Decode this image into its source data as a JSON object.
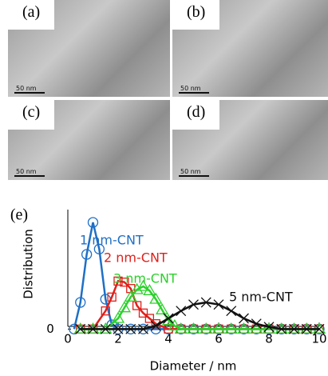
{
  "panels": [
    {
      "label": "(a)",
      "scale": "50 nm"
    },
    {
      "label": "(b)",
      "scale": "50 nm"
    },
    {
      "label": "(c)",
      "scale": "50 nm"
    },
    {
      "label": "(d)",
      "scale": "50 nm"
    }
  ],
  "chart_data": {
    "type": "line",
    "panel_label": "(e)",
    "x_label": "Diameter / nm",
    "y_label": "Distribution",
    "xlim": [
      0,
      10
    ],
    "xticks": [
      0,
      2,
      4,
      6,
      8,
      10
    ],
    "ylim": [
      -0.05,
      1.12
    ],
    "yticks": [
      0
    ],
    "series": [
      {
        "name": "1 nm-CNT",
        "color": "#1f6fc6",
        "marker": "circle",
        "x": [
          0.25,
          0.5,
          0.75,
          1,
          1.25,
          1.5,
          1.75,
          2,
          2.5,
          3,
          3.5,
          4,
          4.5,
          5,
          5.5,
          6,
          6.5,
          7,
          7.5,
          8,
          8.5,
          9,
          9.5,
          10
        ],
        "values": [
          0,
          0.25,
          0.7,
          1,
          0.75,
          0.28,
          0.04,
          0,
          0,
          0,
          0,
          0,
          0,
          0,
          0,
          0,
          0,
          0,
          0,
          0,
          0,
          0,
          0,
          0
        ]
      },
      {
        "name": "2 nm-CNT",
        "color": "#e0201b",
        "marker": "square",
        "x": [
          0.5,
          1,
          1.5,
          1.75,
          2,
          2.25,
          2.5,
          2.75,
          3,
          3.25,
          3.5,
          4,
          4.5,
          5,
          5.5,
          6,
          6.5,
          7,
          7.5,
          8,
          8.5,
          9,
          9.5,
          10
        ],
        "values": [
          0,
          0,
          0.17,
          0.3,
          0.45,
          0.44,
          0.38,
          0.22,
          0.15,
          0.1,
          0.05,
          0,
          0,
          0,
          0,
          0,
          0,
          0,
          0,
          0,
          0,
          0,
          0,
          0
        ]
      },
      {
        "name": "3 nm-CNT",
        "color": "#2bd12b",
        "marker": "triangle",
        "x": [
          0.5,
          1,
          1.5,
          2,
          2.25,
          2.5,
          2.75,
          3,
          3.25,
          3.5,
          3.75,
          4,
          4.25,
          4.5,
          5,
          5.5,
          6,
          6.5,
          7,
          7.5,
          8,
          8.5,
          9,
          9.5,
          10
        ],
        "values": [
          0,
          0,
          0,
          0.1,
          0.2,
          0.3,
          0.37,
          0.4,
          0.36,
          0.28,
          0.18,
          0.08,
          0.03,
          0,
          0,
          0,
          0,
          0,
          0,
          0,
          0,
          0,
          0,
          0,
          0
        ]
      },
      {
        "name": "5 nm-CNT",
        "color": "#111111",
        "marker": "cross",
        "x": [
          0.5,
          1,
          1.5,
          2,
          2.5,
          3,
          3.5,
          4,
          4.5,
          5,
          5.5,
          6,
          6.5,
          7,
          7.5,
          8,
          8.5,
          9,
          9.5,
          10
        ],
        "values": [
          0,
          0,
          0,
          0,
          0,
          0,
          0.03,
          0.1,
          0.17,
          0.23,
          0.25,
          0.23,
          0.17,
          0.1,
          0.05,
          0.02,
          0,
          0,
          0,
          0
        ]
      }
    ]
  }
}
